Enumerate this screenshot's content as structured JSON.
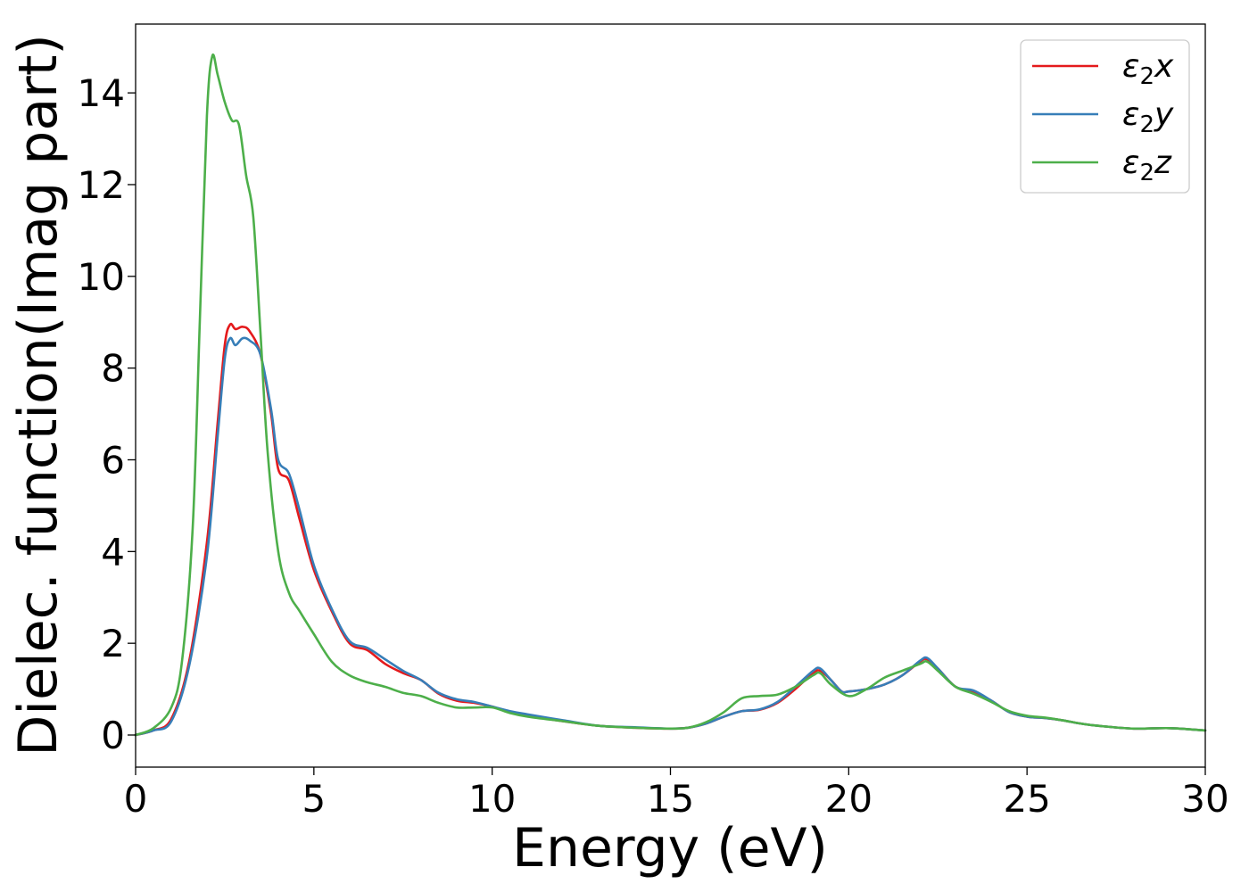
{
  "chart_data": {
    "type": "line",
    "title": "",
    "xlabel": "Energy (eV)",
    "ylabel": "Dielec. function(Imag part)",
    "xlim": [
      0,
      30
    ],
    "ylim": [
      -0.7,
      15.5
    ],
    "xticks": [
      0,
      5,
      10,
      15,
      20,
      25,
      30
    ],
    "yticks": [
      0,
      2,
      4,
      6,
      8,
      10,
      12,
      14
    ],
    "grid": false,
    "legend_position": "top-right",
    "series": [
      {
        "name": "ε2x",
        "legend": {
          "base": "ε",
          "sub": "2",
          "var": "x"
        },
        "color": "#e41a1c",
        "points": [
          [
            0,
            0
          ],
          [
            0.5,
            0.1
          ],
          [
            1.0,
            0.35
          ],
          [
            1.5,
            1.6
          ],
          [
            2.0,
            4.2
          ],
          [
            2.3,
            6.8
          ],
          [
            2.5,
            8.5
          ],
          [
            2.65,
            8.95
          ],
          [
            2.8,
            8.85
          ],
          [
            3.0,
            8.9
          ],
          [
            3.2,
            8.8
          ],
          [
            3.5,
            8.3
          ],
          [
            3.8,
            7.0
          ],
          [
            4.0,
            5.8
          ],
          [
            4.3,
            5.55
          ],
          [
            4.6,
            4.7
          ],
          [
            5.0,
            3.6
          ],
          [
            5.5,
            2.7
          ],
          [
            6.0,
            2.0
          ],
          [
            6.5,
            1.85
          ],
          [
            7.0,
            1.55
          ],
          [
            7.5,
            1.35
          ],
          [
            8.0,
            1.2
          ],
          [
            8.5,
            0.9
          ],
          [
            9.0,
            0.75
          ],
          [
            9.5,
            0.7
          ],
          [
            10.0,
            0.62
          ],
          [
            10.5,
            0.5
          ],
          [
            11.0,
            0.42
          ],
          [
            12.0,
            0.3
          ],
          [
            13.0,
            0.2
          ],
          [
            14.0,
            0.16
          ],
          [
            15.0,
            0.14
          ],
          [
            15.5,
            0.16
          ],
          [
            16.0,
            0.25
          ],
          [
            16.5,
            0.4
          ],
          [
            17.0,
            0.52
          ],
          [
            17.5,
            0.55
          ],
          [
            18.0,
            0.7
          ],
          [
            18.5,
            1.0
          ],
          [
            19.0,
            1.35
          ],
          [
            19.2,
            1.4
          ],
          [
            19.5,
            1.2
          ],
          [
            19.8,
            0.95
          ],
          [
            20.0,
            0.95
          ],
          [
            20.5,
            1.0
          ],
          [
            21.0,
            1.1
          ],
          [
            21.5,
            1.3
          ],
          [
            22.0,
            1.6
          ],
          [
            22.2,
            1.65
          ],
          [
            22.5,
            1.45
          ],
          [
            23.0,
            1.05
          ],
          [
            23.5,
            0.95
          ],
          [
            24.0,
            0.75
          ],
          [
            24.5,
            0.5
          ],
          [
            25.0,
            0.4
          ],
          [
            25.5,
            0.37
          ],
          [
            26.0,
            0.32
          ],
          [
            26.5,
            0.25
          ],
          [
            27.0,
            0.2
          ],
          [
            28.0,
            0.14
          ],
          [
            29.0,
            0.15
          ],
          [
            30.0,
            0.1
          ]
        ]
      },
      {
        "name": "ε2y",
        "legend": {
          "base": "ε",
          "sub": "2",
          "var": "y"
        },
        "color": "#377eb8",
        "points": [
          [
            0,
            0
          ],
          [
            0.5,
            0.1
          ],
          [
            1.0,
            0.3
          ],
          [
            1.5,
            1.5
          ],
          [
            2.0,
            3.9
          ],
          [
            2.3,
            6.5
          ],
          [
            2.5,
            8.2
          ],
          [
            2.65,
            8.65
          ],
          [
            2.8,
            8.5
          ],
          [
            3.0,
            8.65
          ],
          [
            3.2,
            8.6
          ],
          [
            3.5,
            8.3
          ],
          [
            3.8,
            7.1
          ],
          [
            4.0,
            6.0
          ],
          [
            4.3,
            5.7
          ],
          [
            4.6,
            4.9
          ],
          [
            5.0,
            3.7
          ],
          [
            5.5,
            2.75
          ],
          [
            6.0,
            2.05
          ],
          [
            6.5,
            1.9
          ],
          [
            7.0,
            1.65
          ],
          [
            7.5,
            1.4
          ],
          [
            8.0,
            1.2
          ],
          [
            8.5,
            0.92
          ],
          [
            9.0,
            0.78
          ],
          [
            9.5,
            0.72
          ],
          [
            10.0,
            0.62
          ],
          [
            10.5,
            0.52
          ],
          [
            11.0,
            0.45
          ],
          [
            12.0,
            0.32
          ],
          [
            13.0,
            0.2
          ],
          [
            14.0,
            0.17
          ],
          [
            15.0,
            0.14
          ],
          [
            15.5,
            0.16
          ],
          [
            16.0,
            0.25
          ],
          [
            16.5,
            0.4
          ],
          [
            17.0,
            0.52
          ],
          [
            17.5,
            0.56
          ],
          [
            18.0,
            0.72
          ],
          [
            18.5,
            1.05
          ],
          [
            19.0,
            1.4
          ],
          [
            19.2,
            1.45
          ],
          [
            19.5,
            1.2
          ],
          [
            19.8,
            0.95
          ],
          [
            20.0,
            0.95
          ],
          [
            20.5,
            1.0
          ],
          [
            21.0,
            1.1
          ],
          [
            21.5,
            1.3
          ],
          [
            22.0,
            1.62
          ],
          [
            22.2,
            1.68
          ],
          [
            22.5,
            1.45
          ],
          [
            23.0,
            1.05
          ],
          [
            23.5,
            0.97
          ],
          [
            24.0,
            0.75
          ],
          [
            24.5,
            0.5
          ],
          [
            25.0,
            0.4
          ],
          [
            25.5,
            0.37
          ],
          [
            26.0,
            0.32
          ],
          [
            26.5,
            0.25
          ],
          [
            27.0,
            0.2
          ],
          [
            28.0,
            0.14
          ],
          [
            29.0,
            0.15
          ],
          [
            30.0,
            0.1
          ]
        ]
      },
      {
        "name": "ε2z",
        "legend": {
          "base": "ε",
          "sub": "2",
          "var": "z"
        },
        "color": "#4daf4a",
        "points": [
          [
            0,
            0
          ],
          [
            0.5,
            0.15
          ],
          [
            1.0,
            0.6
          ],
          [
            1.3,
            1.6
          ],
          [
            1.6,
            4.5
          ],
          [
            1.8,
            9.0
          ],
          [
            2.0,
            13.5
          ],
          [
            2.15,
            14.8
          ],
          [
            2.3,
            14.4
          ],
          [
            2.5,
            13.8
          ],
          [
            2.7,
            13.4
          ],
          [
            2.9,
            13.3
          ],
          [
            3.1,
            12.2
          ],
          [
            3.3,
            11.3
          ],
          [
            3.5,
            8.8
          ],
          [
            3.7,
            6.2
          ],
          [
            4.0,
            4.0
          ],
          [
            4.3,
            3.1
          ],
          [
            4.6,
            2.7
          ],
          [
            5.0,
            2.2
          ],
          [
            5.5,
            1.6
          ],
          [
            6.0,
            1.3
          ],
          [
            6.5,
            1.15
          ],
          [
            7.0,
            1.05
          ],
          [
            7.5,
            0.92
          ],
          [
            8.0,
            0.85
          ],
          [
            8.5,
            0.7
          ],
          [
            9.0,
            0.6
          ],
          [
            9.5,
            0.6
          ],
          [
            10.0,
            0.6
          ],
          [
            10.5,
            0.48
          ],
          [
            11.0,
            0.4
          ],
          [
            12.0,
            0.3
          ],
          [
            13.0,
            0.2
          ],
          [
            14.0,
            0.16
          ],
          [
            15.0,
            0.14
          ],
          [
            15.5,
            0.16
          ],
          [
            16.0,
            0.28
          ],
          [
            16.5,
            0.5
          ],
          [
            17.0,
            0.8
          ],
          [
            17.5,
            0.85
          ],
          [
            18.0,
            0.88
          ],
          [
            18.5,
            1.05
          ],
          [
            19.0,
            1.3
          ],
          [
            19.2,
            1.35
          ],
          [
            19.5,
            1.1
          ],
          [
            20.0,
            0.85
          ],
          [
            20.5,
            1.0
          ],
          [
            21.0,
            1.25
          ],
          [
            21.5,
            1.4
          ],
          [
            22.0,
            1.55
          ],
          [
            22.2,
            1.6
          ],
          [
            22.5,
            1.4
          ],
          [
            23.0,
            1.05
          ],
          [
            23.5,
            0.9
          ],
          [
            24.0,
            0.72
          ],
          [
            24.5,
            0.52
          ],
          [
            25.0,
            0.42
          ],
          [
            25.5,
            0.38
          ],
          [
            26.0,
            0.32
          ],
          [
            26.5,
            0.25
          ],
          [
            27.0,
            0.2
          ],
          [
            28.0,
            0.14
          ],
          [
            29.0,
            0.15
          ],
          [
            30.0,
            0.1
          ]
        ]
      }
    ]
  }
}
